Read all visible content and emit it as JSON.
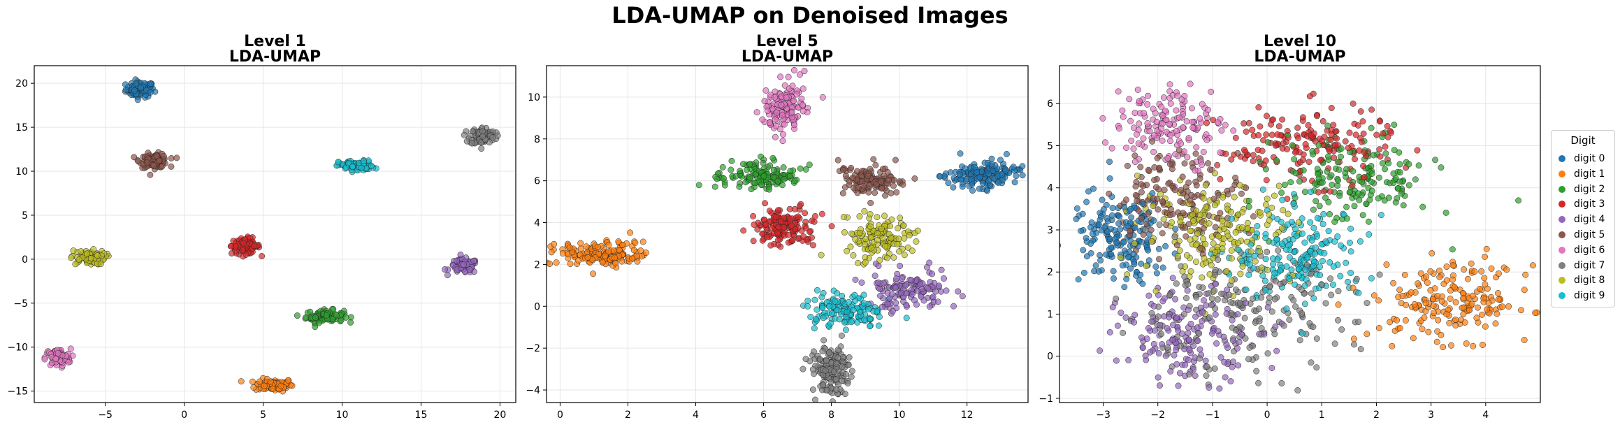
{
  "figure_title": "LDA-UMAP on Denoised Images",
  "legend": {
    "title": "Digit",
    "placement": "right",
    "items": [
      "digit 0",
      "digit 1",
      "digit 2",
      "digit 3",
      "digit 4",
      "digit 5",
      "digit 6",
      "digit 7",
      "digit 8",
      "digit 9"
    ]
  },
  "colors": [
    "#1f77b4",
    "#ff7f0e",
    "#2ca02c",
    "#d62728",
    "#9467bd",
    "#8c564b",
    "#e377c2",
    "#7f7f7f",
    "#bcbd22",
    "#17becf"
  ],
  "chart_data": [
    {
      "type": "scatter",
      "title": "Level 1",
      "subtitle": "LDA-UMAP",
      "xlabel": "",
      "ylabel": "",
      "xlim": [
        -9.5,
        21
      ],
      "ylim": [
        -16.3,
        22
      ],
      "xticks": [
        -5,
        0,
        5,
        10,
        15,
        20
      ],
      "yticks": [
        -15,
        -10,
        -5,
        0,
        5,
        10,
        15,
        20
      ],
      "grid": true,
      "clusters": [
        {
          "digit": 0,
          "cx": -2.8,
          "cy": 19.3,
          "sx": 0.45,
          "sy": 0.45,
          "n": 90
        },
        {
          "digit": 1,
          "cx": 5.7,
          "cy": -14.3,
          "sx": 0.6,
          "sy": 0.35,
          "n": 90
        },
        {
          "digit": 2,
          "cx": 8.9,
          "cy": -6.5,
          "sx": 0.6,
          "sy": 0.35,
          "n": 90
        },
        {
          "digit": 3,
          "cx": 3.9,
          "cy": 1.5,
          "sx": 0.45,
          "sy": 0.45,
          "n": 90
        },
        {
          "digit": 4,
          "cx": 17.7,
          "cy": -0.8,
          "sx": 0.45,
          "sy": 0.4,
          "n": 90
        },
        {
          "digit": 5,
          "cx": -1.9,
          "cy": 11.2,
          "sx": 0.45,
          "sy": 0.4,
          "n": 90
        },
        {
          "digit": 6,
          "cx": -8.0,
          "cy": -11.2,
          "sx": 0.4,
          "sy": 0.5,
          "n": 90
        },
        {
          "digit": 7,
          "cx": 18.9,
          "cy": 14.0,
          "sx": 0.4,
          "sy": 0.5,
          "n": 90
        },
        {
          "digit": 8,
          "cx": -6.1,
          "cy": 0.2,
          "sx": 0.55,
          "sy": 0.4,
          "n": 90
        },
        {
          "digit": 9,
          "cx": 10.9,
          "cy": 10.6,
          "sx": 0.55,
          "sy": 0.3,
          "n": 90
        }
      ]
    },
    {
      "type": "scatter",
      "title": "Level 5",
      "subtitle": "LDA-UMAP",
      "xlabel": "",
      "ylabel": "",
      "xlim": [
        -0.4,
        13.8
      ],
      "ylim": [
        -4.6,
        11.5
      ],
      "xticks": [
        0,
        2,
        4,
        6,
        8,
        10,
        12
      ],
      "yticks": [
        -4,
        -2,
        0,
        2,
        4,
        6,
        8,
        10
      ],
      "grid": true,
      "clusters": [
        {
          "digit": 0,
          "cx": 12.5,
          "cy": 6.3,
          "sx": 0.55,
          "sy": 0.3,
          "n": 150
        },
        {
          "digit": 1,
          "cx": 1.2,
          "cy": 2.5,
          "sx": 0.65,
          "sy": 0.3,
          "n": 150
        },
        {
          "digit": 2,
          "cx": 5.9,
          "cy": 6.2,
          "sx": 0.6,
          "sy": 0.35,
          "n": 140
        },
        {
          "digit": 3,
          "cx": 6.6,
          "cy": 3.8,
          "sx": 0.45,
          "sy": 0.45,
          "n": 140
        },
        {
          "digit": 4,
          "cx": 10.3,
          "cy": 0.8,
          "sx": 0.6,
          "sy": 0.45,
          "n": 130
        },
        {
          "digit": 5,
          "cx": 9.2,
          "cy": 6.0,
          "sx": 0.5,
          "sy": 0.4,
          "n": 120
        },
        {
          "digit": 6,
          "cx": 6.6,
          "cy": 9.5,
          "sx": 0.3,
          "sy": 0.6,
          "n": 130
        },
        {
          "digit": 7,
          "cx": 8.0,
          "cy": -3.0,
          "sx": 0.3,
          "sy": 0.55,
          "n": 150
        },
        {
          "digit": 8,
          "cx": 9.4,
          "cy": 3.3,
          "sx": 0.5,
          "sy": 0.5,
          "n": 130
        },
        {
          "digit": 9,
          "cx": 8.4,
          "cy": -0.3,
          "sx": 0.55,
          "sy": 0.45,
          "n": 130
        }
      ]
    },
    {
      "type": "scatter",
      "title": "Level 10",
      "subtitle": "LDA-UMAP",
      "xlabel": "",
      "ylabel": "",
      "xlim": [
        -3.8,
        5.0
      ],
      "ylim": [
        -1.1,
        6.9
      ],
      "xticks": [
        -3,
        -2,
        -1,
        0,
        1,
        2,
        3,
        4
      ],
      "yticks": [
        -1,
        0,
        1,
        2,
        3,
        4,
        5,
        6
      ],
      "grid": true,
      "clusters": [
        {
          "digit": 0,
          "cx": -2.7,
          "cy": 2.8,
          "sx": 0.45,
          "sy": 0.55,
          "n": 170
        },
        {
          "digit": 1,
          "cx": 3.4,
          "cy": 1.3,
          "sx": 0.75,
          "sy": 0.45,
          "n": 190
        },
        {
          "digit": 2,
          "cx": 1.6,
          "cy": 4.2,
          "sx": 0.7,
          "sy": 0.55,
          "n": 170
        },
        {
          "digit": 3,
          "cx": 0.7,
          "cy": 5.0,
          "sx": 0.8,
          "sy": 0.45,
          "n": 170
        },
        {
          "digit": 4,
          "cx": -1.4,
          "cy": 0.5,
          "sx": 0.65,
          "sy": 0.55,
          "n": 170
        },
        {
          "digit": 5,
          "cx": -1.6,
          "cy": 3.8,
          "sx": 0.6,
          "sy": 0.55,
          "n": 150
        },
        {
          "digit": 6,
          "cx": -1.8,
          "cy": 5.5,
          "sx": 0.5,
          "sy": 0.5,
          "n": 150
        },
        {
          "digit": 7,
          "cx": -0.6,
          "cy": 1.0,
          "sx": 1.1,
          "sy": 0.7,
          "n": 200
        },
        {
          "digit": 8,
          "cx": -0.9,
          "cy": 3.0,
          "sx": 0.7,
          "sy": 0.6,
          "n": 190
        },
        {
          "digit": 9,
          "cx": 0.6,
          "cy": 2.4,
          "sx": 0.6,
          "sy": 0.55,
          "n": 190
        }
      ]
    }
  ]
}
